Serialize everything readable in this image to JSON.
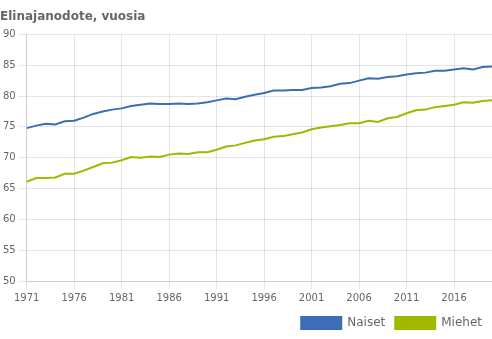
{
  "chart_data": {
    "type": "line",
    "title": "Elinajanodote, vuosia",
    "x": [
      1971,
      1972,
      1973,
      1974,
      1975,
      1976,
      1977,
      1978,
      1979,
      1980,
      1981,
      1982,
      1983,
      1984,
      1985,
      1986,
      1987,
      1988,
      1989,
      1990,
      1991,
      1992,
      1993,
      1994,
      1995,
      1996,
      1997,
      1998,
      1999,
      2000,
      2001,
      2002,
      2003,
      2004,
      2005,
      2006,
      2007,
      2008,
      2009,
      2010,
      2011,
      2012,
      2013,
      2014,
      2015,
      2016,
      2017,
      2018,
      2019,
      2020
    ],
    "series": [
      {
        "name": "Naiset",
        "color": "#3d6db5",
        "values": [
          74.8,
          75.2,
          75.5,
          75.4,
          75.9,
          76.0,
          76.5,
          77.1,
          77.5,
          77.8,
          78.0,
          78.4,
          78.6,
          78.8,
          78.7,
          78.7,
          78.8,
          78.7,
          78.8,
          79.0,
          79.3,
          79.6,
          79.5,
          79.9,
          80.2,
          80.5,
          80.9,
          80.9,
          81.0,
          81.0,
          81.3,
          81.4,
          81.6,
          82.0,
          82.1,
          82.5,
          82.9,
          82.8,
          83.1,
          83.2,
          83.5,
          83.7,
          83.8,
          84.1,
          84.1,
          84.3,
          84.5,
          84.3,
          84.7,
          84.8
        ]
      },
      {
        "name": "Miehet",
        "color": "#a0b800",
        "values": [
          66.1,
          66.7,
          66.7,
          66.8,
          67.4,
          67.4,
          67.9,
          68.5,
          69.1,
          69.2,
          69.6,
          70.1,
          70.0,
          70.2,
          70.1,
          70.5,
          70.7,
          70.6,
          70.9,
          70.9,
          71.3,
          71.8,
          72.0,
          72.4,
          72.8,
          73.0,
          73.4,
          73.5,
          73.8,
          74.1,
          74.6,
          74.9,
          75.1,
          75.3,
          75.6,
          75.6,
          76.0,
          75.8,
          76.4,
          76.6,
          77.2,
          77.7,
          77.8,
          78.2,
          78.4,
          78.6,
          79.0,
          78.9,
          79.2,
          79.3
        ]
      }
    ],
    "xlim": [
      1971,
      2020
    ],
    "xticks": [
      1971,
      1976,
      1981,
      1986,
      1991,
      1996,
      2001,
      2006,
      2011,
      2016
    ],
    "ylim": [
      50,
      90
    ],
    "yticks": [
      50,
      55,
      60,
      65,
      70,
      75,
      80,
      85,
      90
    ],
    "grid": true,
    "legend": "lower right"
  }
}
